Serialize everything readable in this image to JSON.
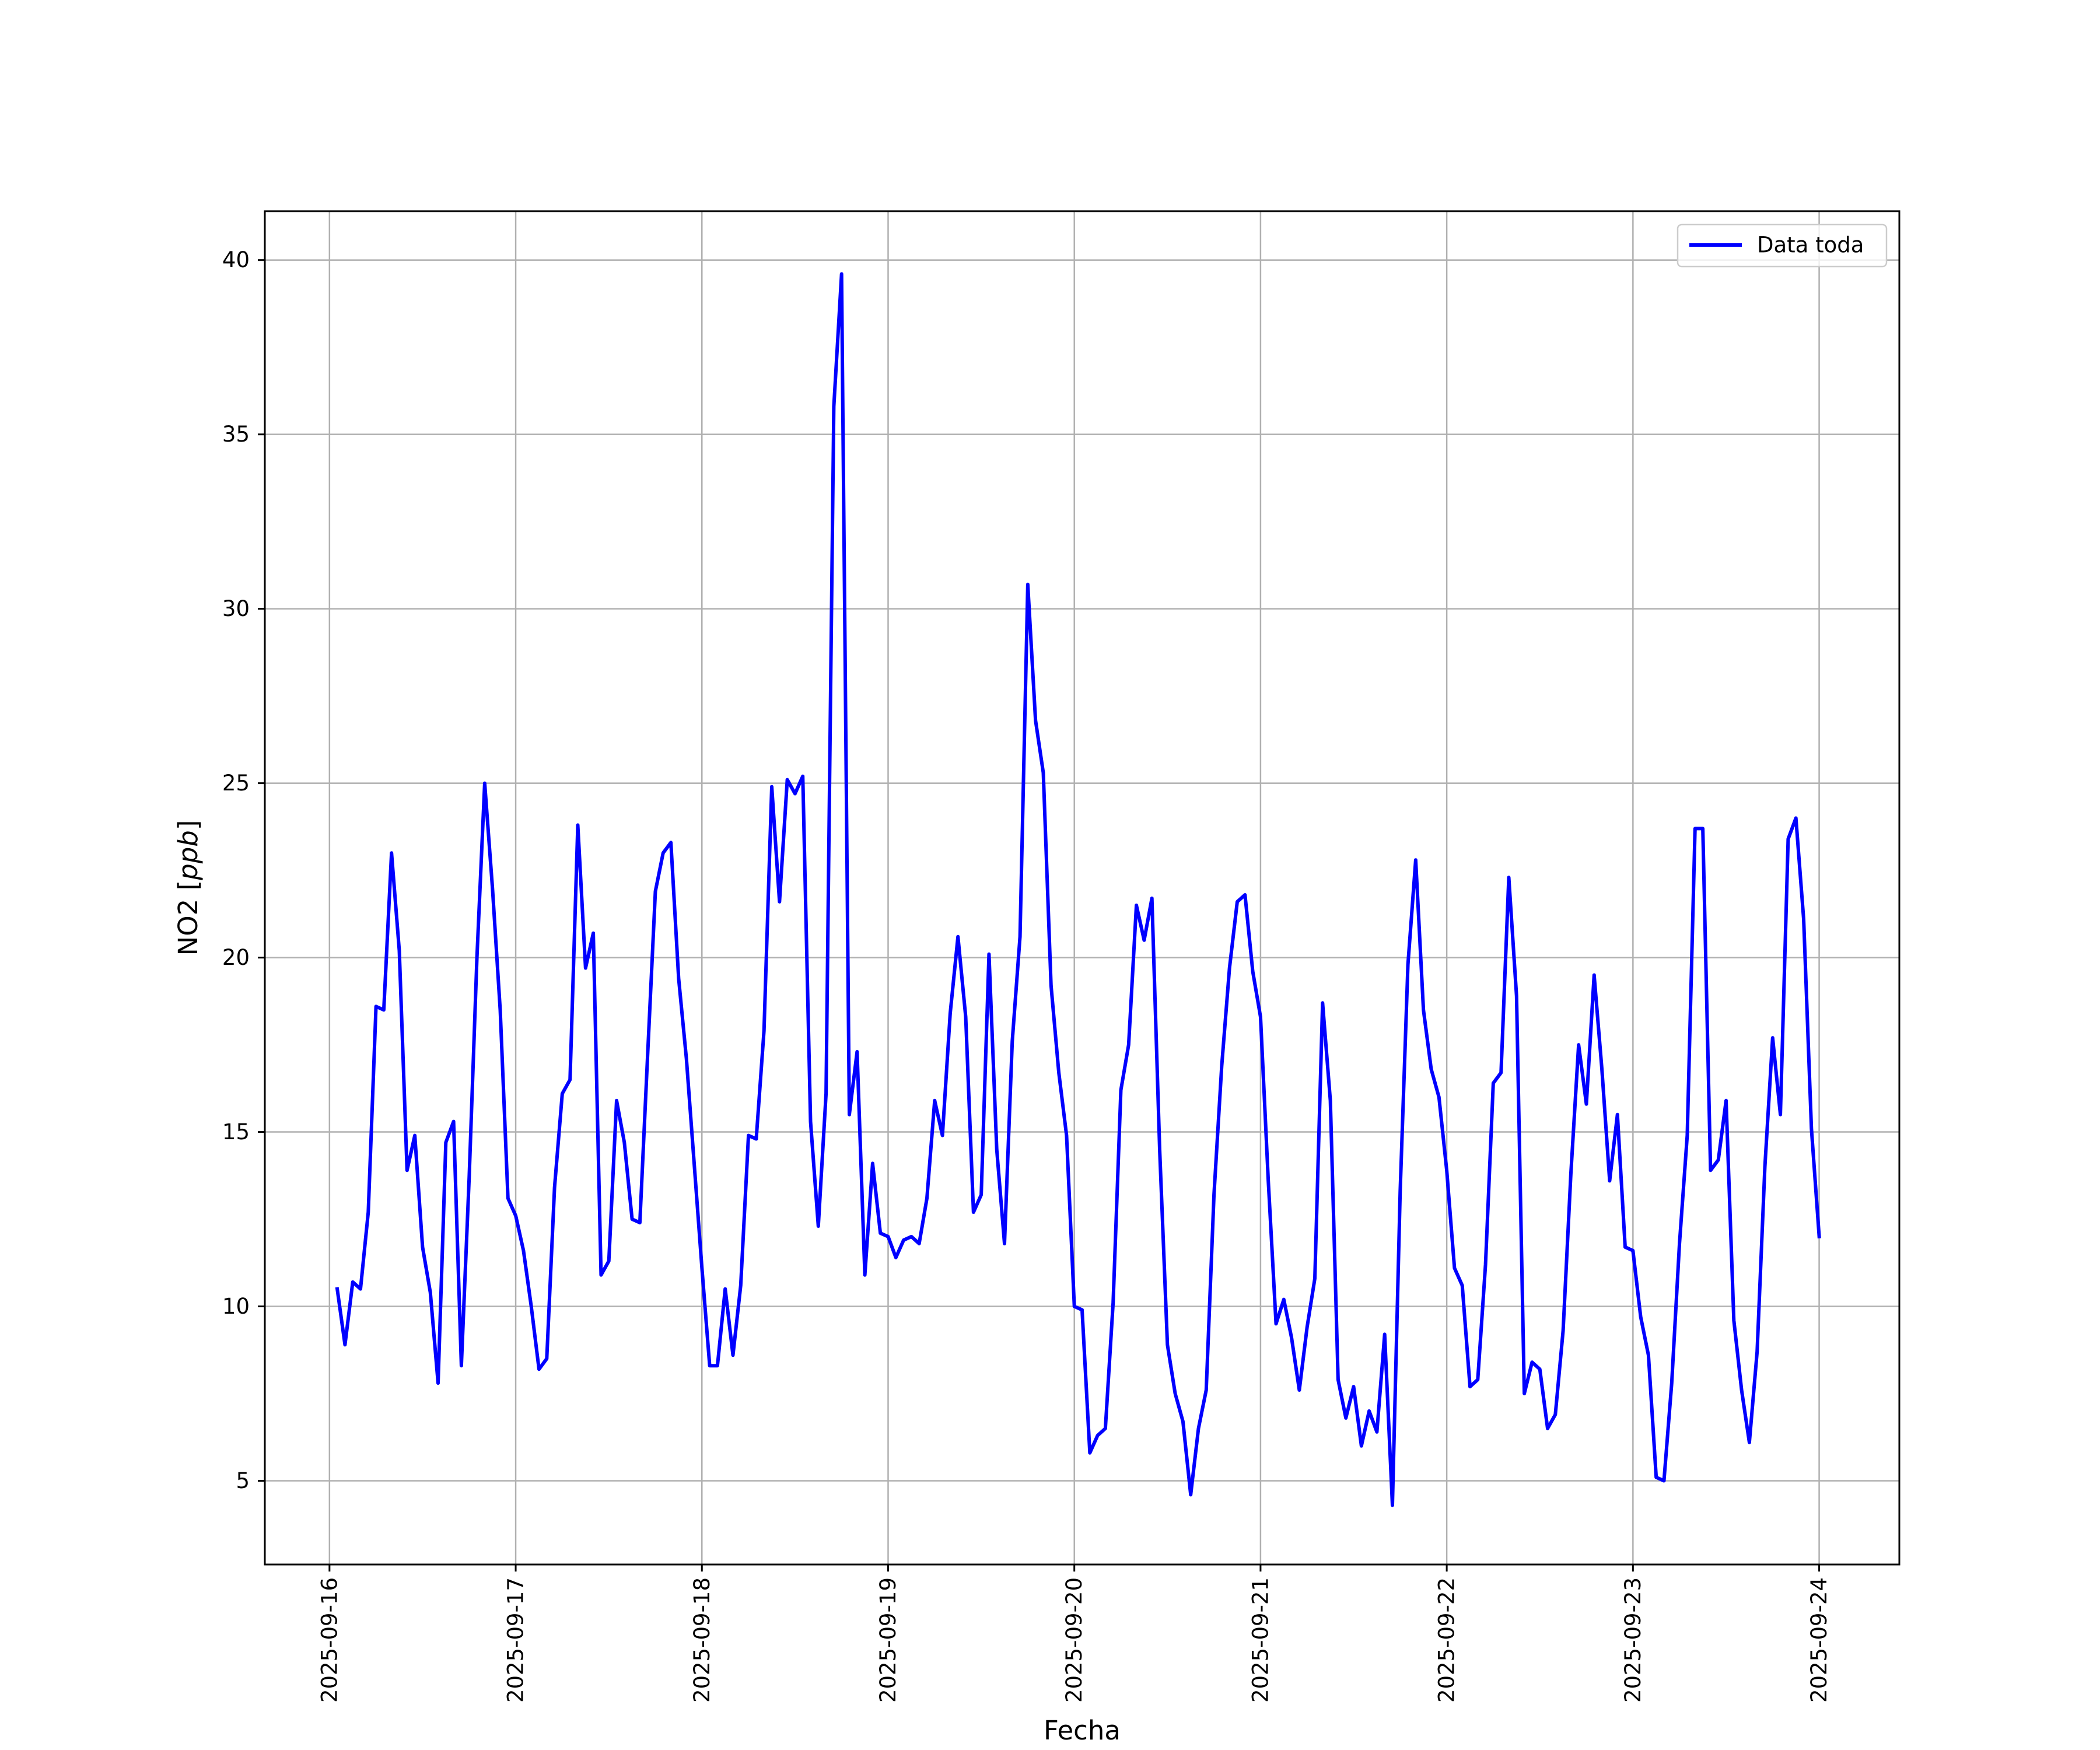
{
  "chart_data": {
    "type": "line",
    "title": "",
    "xlabel": "Fecha",
    "ylabel": "NO2 [ppb]",
    "ylabel_parts": {
      "main": "NO2 [",
      "unit": "ppb",
      "close": "]"
    },
    "x_ticks": [
      "2025-09-16",
      "2025-09-17",
      "2025-09-18",
      "2025-09-19",
      "2025-09-20",
      "2025-09-21",
      "2025-09-22",
      "2025-09-23",
      "2025-09-24"
    ],
    "y_ticks": [
      5,
      10,
      15,
      20,
      25,
      30,
      35,
      40
    ],
    "xlim": [
      "2025-09-15T15:40",
      "2025-09-24T10:20"
    ],
    "ylim": [
      2.6,
      41.4
    ],
    "grid": true,
    "legend_position": "top-right",
    "series": [
      {
        "name": "Data toda",
        "color": "#0000ff",
        "x": [
          "2025-09-16T01:00",
          "2025-09-16T02:00",
          "2025-09-16T03:00",
          "2025-09-16T04:00",
          "2025-09-16T05:00",
          "2025-09-16T06:00",
          "2025-09-16T07:00",
          "2025-09-16T08:00",
          "2025-09-16T09:00",
          "2025-09-16T10:00",
          "2025-09-16T11:00",
          "2025-09-16T12:00",
          "2025-09-16T13:00",
          "2025-09-16T14:00",
          "2025-09-16T15:00",
          "2025-09-16T16:00",
          "2025-09-16T17:00",
          "2025-09-16T18:00",
          "2025-09-16T19:00",
          "2025-09-16T20:00",
          "2025-09-16T21:00",
          "2025-09-16T22:00",
          "2025-09-16T23:00",
          "2025-09-17T00:00",
          "2025-09-17T01:00",
          "2025-09-17T02:00",
          "2025-09-17T03:00",
          "2025-09-17T04:00",
          "2025-09-17T05:00",
          "2025-09-17T06:00",
          "2025-09-17T07:00",
          "2025-09-17T08:00",
          "2025-09-17T09:00",
          "2025-09-17T10:00",
          "2025-09-17T11:00",
          "2025-09-17T12:00",
          "2025-09-17T13:00",
          "2025-09-17T14:00",
          "2025-09-17T15:00",
          "2025-09-17T16:00",
          "2025-09-17T17:00",
          "2025-09-17T18:00",
          "2025-09-17T19:00",
          "2025-09-17T20:00",
          "2025-09-17T21:00",
          "2025-09-17T22:00",
          "2025-09-17T23:00",
          "2025-09-18T00:00",
          "2025-09-18T01:00",
          "2025-09-18T02:00",
          "2025-09-18T03:00",
          "2025-09-18T04:00",
          "2025-09-18T05:00",
          "2025-09-18T06:00",
          "2025-09-18T07:00",
          "2025-09-18T08:00",
          "2025-09-18T09:00",
          "2025-09-18T10:00",
          "2025-09-18T11:00",
          "2025-09-18T12:00",
          "2025-09-18T13:00",
          "2025-09-18T14:00",
          "2025-09-18T15:00",
          "2025-09-18T16:00",
          "2025-09-18T17:00",
          "2025-09-18T18:00",
          "2025-09-18T19:00",
          "2025-09-18T20:00",
          "2025-09-18T21:00",
          "2025-09-18T22:00",
          "2025-09-18T23:00",
          "2025-09-19T00:00",
          "2025-09-19T01:00",
          "2025-09-19T02:00",
          "2025-09-19T03:00",
          "2025-09-19T04:00",
          "2025-09-19T05:00",
          "2025-09-19T06:00",
          "2025-09-19T07:00",
          "2025-09-19T08:00",
          "2025-09-19T09:00",
          "2025-09-19T10:00",
          "2025-09-19T11:00",
          "2025-09-19T12:00",
          "2025-09-19T13:00",
          "2025-09-19T14:00",
          "2025-09-19T15:00",
          "2025-09-19T16:00",
          "2025-09-19T17:00",
          "2025-09-19T18:00",
          "2025-09-19T19:00",
          "2025-09-19T20:00",
          "2025-09-19T21:00",
          "2025-09-19T22:00",
          "2025-09-19T23:00",
          "2025-09-20T00:00",
          "2025-09-20T01:00",
          "2025-09-20T02:00",
          "2025-09-20T03:00",
          "2025-09-20T04:00",
          "2025-09-20T05:00",
          "2025-09-20T06:00",
          "2025-09-20T07:00",
          "2025-09-20T08:00",
          "2025-09-20T09:00",
          "2025-09-20T10:00",
          "2025-09-20T11:00",
          "2025-09-20T12:00",
          "2025-09-20T13:00",
          "2025-09-20T14:00",
          "2025-09-20T15:00",
          "2025-09-20T16:00",
          "2025-09-20T17:00",
          "2025-09-20T18:00",
          "2025-09-20T19:00",
          "2025-09-20T20:00",
          "2025-09-20T21:00",
          "2025-09-20T22:00",
          "2025-09-20T23:00",
          "2025-09-21T00:00",
          "2025-09-21T01:00",
          "2025-09-21T02:00",
          "2025-09-21T03:00",
          "2025-09-21T04:00",
          "2025-09-21T05:00",
          "2025-09-21T06:00",
          "2025-09-21T07:00",
          "2025-09-21T08:00",
          "2025-09-21T09:00",
          "2025-09-21T10:00",
          "2025-09-21T11:00",
          "2025-09-21T12:00",
          "2025-09-21T13:00",
          "2025-09-21T14:00",
          "2025-09-21T15:00",
          "2025-09-21T16:00",
          "2025-09-21T17:00",
          "2025-09-21T18:00",
          "2025-09-21T19:00",
          "2025-09-21T20:00",
          "2025-09-21T21:00",
          "2025-09-21T22:00",
          "2025-09-21T23:00",
          "2025-09-22T00:00",
          "2025-09-22T01:00",
          "2025-09-22T02:00",
          "2025-09-22T03:00",
          "2025-09-22T04:00",
          "2025-09-22T05:00",
          "2025-09-22T06:00",
          "2025-09-22T07:00",
          "2025-09-22T08:00",
          "2025-09-22T09:00",
          "2025-09-22T10:00",
          "2025-09-22T11:00",
          "2025-09-22T12:00",
          "2025-09-22T13:00",
          "2025-09-22T14:00",
          "2025-09-22T15:00",
          "2025-09-22T16:00",
          "2025-09-22T17:00",
          "2025-09-22T18:00",
          "2025-09-22T19:00",
          "2025-09-22T20:00",
          "2025-09-22T21:00",
          "2025-09-22T22:00",
          "2025-09-22T23:00",
          "2025-09-23T00:00",
          "2025-09-23T01:00",
          "2025-09-23T02:00",
          "2025-09-23T03:00",
          "2025-09-23T04:00",
          "2025-09-23T05:00",
          "2025-09-23T06:00",
          "2025-09-23T07:00",
          "2025-09-23T08:00",
          "2025-09-23T09:00",
          "2025-09-23T10:00",
          "2025-09-23T11:00",
          "2025-09-23T12:00",
          "2025-09-23T13:00",
          "2025-09-23T14:00",
          "2025-09-23T15:00",
          "2025-09-23T16:00",
          "2025-09-23T17:00",
          "2025-09-23T18:00",
          "2025-09-23T19:00",
          "2025-09-23T20:00",
          "2025-09-23T21:00",
          "2025-09-23T22:00",
          "2025-09-23T23:00",
          "2025-09-24T00:00"
        ],
        "y": [
          10.5,
          8.9,
          10.7,
          10.5,
          12.7,
          18.6,
          18.5,
          23.0,
          20.2,
          13.9,
          14.9,
          11.7,
          10.4,
          7.8,
          14.7,
          15.3,
          8.3,
          13.7,
          20.0,
          25.0,
          22.0,
          18.5,
          13.1,
          12.6,
          11.6,
          10.0,
          8.2,
          8.5,
          13.4,
          16.1,
          16.5,
          23.8,
          19.7,
          20.7,
          10.9,
          11.3,
          15.9,
          14.7,
          12.5,
          12.4,
          17.2,
          21.9,
          23.0,
          23.3,
          19.4,
          17.1,
          14.1,
          11.1,
          8.3,
          8.3,
          10.5,
          8.6,
          10.6,
          14.9,
          14.8,
          17.9,
          24.9,
          21.6,
          25.1,
          24.7,
          25.2,
          15.3,
          12.3,
          16.1,
          35.8,
          39.6,
          15.5,
          17.3,
          10.9,
          14.1,
          12.1,
          12.0,
          11.4,
          11.9,
          12.0,
          11.8,
          13.1,
          15.9,
          14.9,
          18.4,
          20.6,
          18.3,
          12.7,
          13.2,
          20.1,
          14.5,
          11.8,
          17.6,
          20.6,
          30.7,
          26.8,
          25.3,
          19.2,
          16.7,
          14.9,
          10.0,
          9.9,
          5.8,
          6.3,
          6.5,
          10.1,
          16.2,
          17.5,
          21.5,
          20.5,
          21.7,
          14.5,
          8.9,
          7.5,
          6.7,
          4.6,
          6.5,
          7.6,
          13.2,
          16.9,
          19.7,
          21.6,
          21.8,
          19.6,
          18.3,
          13.6,
          9.5,
          10.2,
          9.1,
          7.6,
          9.4,
          10.8,
          18.7,
          15.9,
          7.9,
          6.8,
          7.7,
          6.0,
          7.0,
          6.4,
          9.2,
          4.3,
          13.3,
          19.8,
          22.8,
          18.5,
          16.8,
          16.0,
          13.9,
          11.1,
          10.6,
          7.7,
          7.9,
          11.2,
          16.4,
          16.7,
          22.3,
          18.9,
          7.5,
          8.4,
          8.2,
          6.5,
          6.9,
          9.3,
          13.8,
          17.5,
          15.8,
          19.5,
          16.8,
          13.6,
          15.5,
          11.7,
          11.6,
          9.7,
          8.6,
          5.1,
          5.0,
          7.8,
          11.8,
          14.9,
          23.7,
          23.7,
          13.9,
          14.2,
          15.9,
          9.6,
          7.6,
          6.1,
          8.7,
          14.0,
          17.7,
          15.5,
          23.4,
          24.0,
          21.1,
          15.1,
          12.0
        ]
      }
    ]
  }
}
